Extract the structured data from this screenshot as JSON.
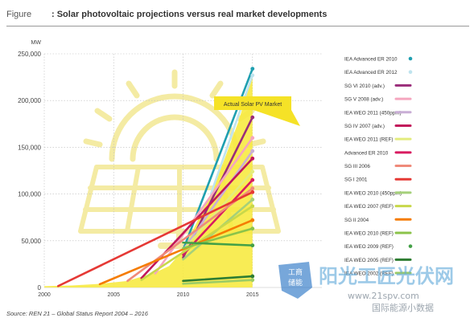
{
  "header": {
    "figure_label": "Figure",
    "title": ": Solar photovoltaic projections versus real market developments"
  },
  "source": "Source: REN 21 – Global Status Report 2004 – 2016",
  "watermark": {
    "badge_line1": "工商",
    "badge_line2": "储能",
    "brand": "阳光工匠光伏网",
    "url": "www.21spv.com",
    "subtitle": "国际能源小数据"
  },
  "colors": {
    "actual_fill": "#f7e93e",
    "sun_outline": "#f4eba3",
    "label_bg": "#f5e227"
  },
  "chart_data": {
    "type": "line",
    "title": "Solar photovoltaic projections versus real market developments",
    "ylabel": "MW",
    "xlabel": "",
    "xlim": [
      2000,
      2020
    ],
    "ylim": [
      0,
      250000
    ],
    "grid": true,
    "x_ticks": [
      {
        "value": 2000,
        "label": "2000"
      },
      {
        "value": 2005,
        "label": "2005"
      },
      {
        "value": 2010,
        "label": "2010"
      },
      {
        "value": 2015,
        "label": "2015"
      }
    ],
    "y_ticks": [
      {
        "value": 0,
        "label": "0"
      },
      {
        "value": 50000,
        "label": "50,000"
      },
      {
        "value": 100000,
        "label": "100,000"
      },
      {
        "value": 150000,
        "label": "150,000"
      },
      {
        "value": 200000,
        "label": "200,000"
      },
      {
        "value": 250000,
        "label": "250,000"
      }
    ],
    "actual_market": {
      "label": "Actual Solar PV Market",
      "x": [
        2000,
        2002,
        2004,
        2006,
        2008,
        2009,
        2010,
        2011,
        2012,
        2013,
        2014,
        2015
      ],
      "y": [
        1400,
        2200,
        3900,
        7000,
        16000,
        23000,
        40000,
        70000,
        100000,
        138000,
        178000,
        228000
      ]
    },
    "series": [
      {
        "name": "IEA Advanced ER 2010",
        "color": "#1f9fb0",
        "x": [
          2010,
          2015
        ],
        "y": [
          40000,
          234000
        ]
      },
      {
        "name": "IEA Advanced ER 2012",
        "color": "#bfe4ee",
        "x": [
          2012,
          2015
        ],
        "y": [
          100000,
          227000
        ]
      },
      {
        "name": "SG VI 2010 (adv.)",
        "color": "#9a2c7a",
        "x": [
          2010,
          2015
        ],
        "y": [
          32000,
          182000
        ]
      },
      {
        "name": "SG V 2008 (adv.)",
        "color": "#f5a6bf",
        "x": [
          2008,
          2015
        ],
        "y": [
          15000,
          160000
        ]
      },
      {
        "name": "IEA WEO 2011 (450ppm)",
        "color": "#c9aed6",
        "x": [
          2010,
          2015
        ],
        "y": [
          40000,
          146000
        ]
      },
      {
        "name": "SG IV 2007 (adv.)",
        "color": "#c2185b",
        "x": [
          2007,
          2015
        ],
        "y": [
          10000,
          138000
        ]
      },
      {
        "name": "IEA WEO 2011 (REF)",
        "color": "#e3ec7e",
        "x": [
          2010,
          2015
        ],
        "y": [
          40000,
          124000
        ]
      },
      {
        "name": "Advanced ER 2010",
        "color": "#d81b60",
        "x": [
          2010,
          2015
        ],
        "y": [
          35000,
          115000
        ]
      },
      {
        "name": "SG III 2006",
        "color": "#ef8a7a",
        "x": [
          2006,
          2015
        ],
        "y": [
          7000,
          106000
        ]
      },
      {
        "name": "SG I 2001",
        "color": "#e53935",
        "x": [
          2001,
          2015
        ],
        "y": [
          1500,
          102000
        ]
      },
      {
        "name": "IEA WEO 2010 (450ppm)",
        "color": "#a5d07a",
        "x": [
          2010,
          2015
        ],
        "y": [
          30000,
          94000
        ]
      },
      {
        "name": "IEA WEO 2007 (REF)",
        "color": "#c8d84a",
        "x": [
          2007,
          2015
        ],
        "y": [
          8000,
          87000
        ]
      },
      {
        "name": "SG II 2004",
        "color": "#f57c00",
        "x": [
          2004,
          2015
        ],
        "y": [
          3500,
          72000
        ]
      },
      {
        "name": "IEA WEO 2010 (REF)",
        "color": "#8bc34a",
        "x": [
          2010,
          2015
        ],
        "y": [
          42000,
          63000
        ]
      },
      {
        "name": "IEA WEO 2009 (REF)",
        "color": "#43a047",
        "x": [
          2010,
          2015
        ],
        "y": [
          48000,
          45000
        ]
      },
      {
        "name": "IEA WEO 2005 (REF)",
        "color": "#2e7d32",
        "x": [
          2010,
          2015
        ],
        "y": [
          7000,
          12000
        ]
      },
      {
        "name": "IEA WEO 2002 (REF)",
        "color": "#9ccc65",
        "x": [
          2010,
          2015
        ],
        "y": [
          4000,
          8000
        ]
      }
    ]
  }
}
